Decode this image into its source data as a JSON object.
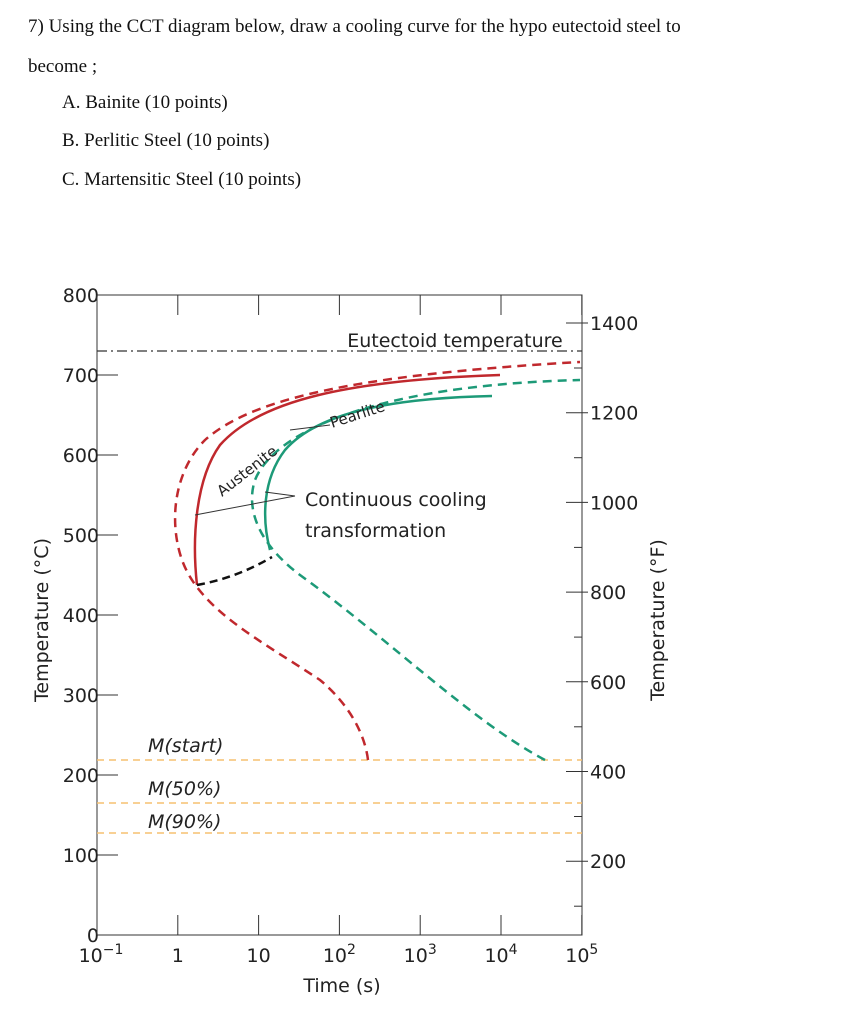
{
  "question": {
    "text_lines": [
      "7) Using the CCT diagram below, draw a cooling curve for the hypo eutectoid steel to",
      "become ;"
    ],
    "options": [
      "A. Bainite (10 points)",
      "B. Perlitic Steel (10 points)",
      "C. Martensitic Steel (10 points)"
    ]
  },
  "figure": {
    "y_axis_title": "Temperature (°C)",
    "y2_axis_title": "Temperature (°F)",
    "x_axis_title": "Time (s)",
    "yticks": [
      "800",
      "700",
      "600",
      "500",
      "400",
      "300",
      "200",
      "100",
      "0"
    ],
    "y2ticks": [
      "1400",
      "1200",
      "1000",
      "800",
      "600",
      "400",
      "200"
    ],
    "xticks": [
      {
        "base": "10",
        "exp": "−1"
      },
      {
        "base": "1"
      },
      {
        "base": "10"
      },
      {
        "base": "10",
        "exp": "2"
      },
      {
        "base": "10",
        "exp": "3"
      },
      {
        "base": "10",
        "exp": "4"
      },
      {
        "base": "10",
        "exp": "5"
      }
    ],
    "annotations": {
      "eutectoid": "Eutectoid temperature",
      "pearlite": "Pearlite",
      "austenite": "Austenite",
      "cct": [
        "Continuous cooling",
        "transformation"
      ],
      "m_start": "M(start)",
      "m_50": "M(50%)",
      "m_90": "M(90%)"
    }
  }
}
